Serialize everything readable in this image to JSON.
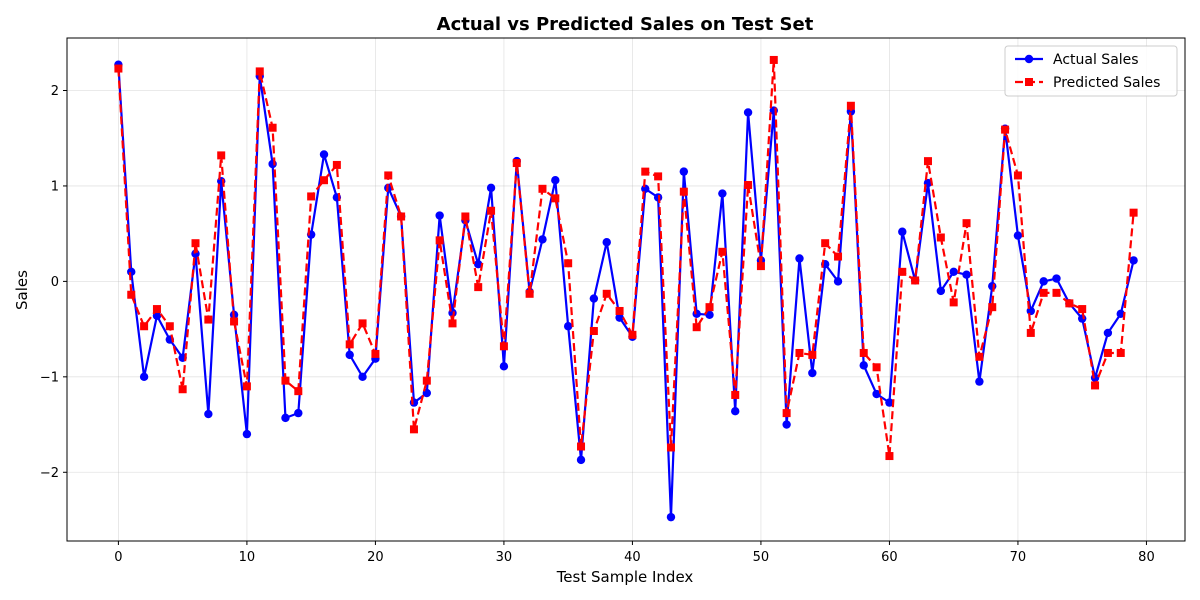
{
  "chart_data": {
    "type": "line",
    "title": "Actual vs Predicted Sales on Test Set",
    "xlabel": "Test Sample Index",
    "ylabel": "Sales",
    "xlim": [
      -4,
      83
    ],
    "ylim": [
      -2.72,
      2.55
    ],
    "xticks": [
      0,
      10,
      20,
      30,
      40,
      50,
      60,
      70,
      80
    ],
    "yticks": [
      -2,
      -1,
      0,
      1,
      2
    ],
    "ytick_labels": [
      "−2",
      "−1",
      "0",
      "1",
      "2"
    ],
    "grid": true,
    "legend_position": "upper right",
    "x": [
      0,
      1,
      2,
      3,
      4,
      5,
      6,
      7,
      8,
      9,
      10,
      11,
      12,
      13,
      14,
      15,
      16,
      17,
      18,
      19,
      20,
      21,
      22,
      23,
      24,
      25,
      26,
      27,
      28,
      29,
      30,
      31,
      32,
      33,
      34,
      35,
      36,
      37,
      38,
      39,
      40,
      41,
      42,
      43,
      44,
      45,
      46,
      47,
      48,
      49,
      50,
      51,
      52,
      53,
      54,
      55,
      56,
      57,
      58,
      59,
      60,
      61,
      62,
      63,
      64,
      65,
      66,
      67,
      68,
      69,
      70,
      71,
      72,
      73,
      74,
      75,
      76,
      77,
      78,
      79
    ],
    "series": [
      {
        "name": "Actual Sales",
        "color": "#0000ff",
        "line_style": "solid",
        "marker": "circle",
        "values": [
          2.27,
          0.1,
          -1.0,
          -0.36,
          -0.61,
          -0.8,
          0.29,
          -1.39,
          1.05,
          -0.35,
          -1.6,
          2.15,
          1.23,
          -1.43,
          -1.38,
          0.49,
          1.33,
          0.88,
          -0.77,
          -1.0,
          -0.81,
          0.98,
          0.68,
          -1.27,
          -1.17,
          0.69,
          -0.33,
          0.64,
          0.18,
          0.98,
          -0.89,
          1.26,
          -0.11,
          0.44,
          1.06,
          -0.47,
          -1.87,
          -0.18,
          0.41,
          -0.38,
          -0.58,
          0.97,
          0.88,
          -2.47,
          1.15,
          -0.34,
          -0.35,
          0.92,
          -1.36,
          1.77,
          0.22,
          1.79,
          -1.5,
          0.24,
          -0.96,
          0.18,
          0.0,
          1.78,
          -0.88,
          -1.18,
          -1.27,
          0.52,
          0.01,
          1.03,
          -0.1,
          0.1,
          0.07,
          -1.05,
          -0.05,
          1.6,
          0.48,
          -0.31,
          0.0,
          0.03,
          -0.23,
          -0.39,
          -1.01,
          -0.54,
          -0.34,
          0.22
        ]
      },
      {
        "name": "Predicted Sales",
        "color": "#ff0000",
        "line_style": "dashed",
        "marker": "square",
        "values": [
          2.23,
          -0.14,
          -0.47,
          -0.29,
          -0.47,
          -1.13,
          0.4,
          -0.4,
          1.32,
          -0.42,
          -1.1,
          2.2,
          1.61,
          -1.04,
          -1.15,
          0.89,
          1.06,
          1.22,
          -0.66,
          -0.44,
          -0.76,
          1.11,
          0.68,
          -1.55,
          -1.04,
          0.43,
          -0.44,
          0.68,
          -0.06,
          0.74,
          -0.68,
          1.24,
          -0.13,
          0.97,
          0.87,
          0.19,
          -1.73,
          -0.52,
          -0.13,
          -0.31,
          -0.56,
          1.15,
          1.1,
          -1.74,
          0.94,
          -0.48,
          -0.27,
          0.31,
          -1.19,
          1.01,
          0.16,
          2.32,
          -1.38,
          -0.75,
          -0.77,
          0.4,
          0.26,
          1.84,
          -0.75,
          -0.9,
          -1.83,
          0.1,
          0.01,
          1.26,
          0.46,
          -0.22,
          0.61,
          -0.79,
          -0.27,
          1.59,
          1.11,
          -0.54,
          -0.12,
          -0.12,
          -0.23,
          -0.29,
          -1.09,
          -0.75,
          -0.75,
          0.72
        ]
      }
    ]
  }
}
